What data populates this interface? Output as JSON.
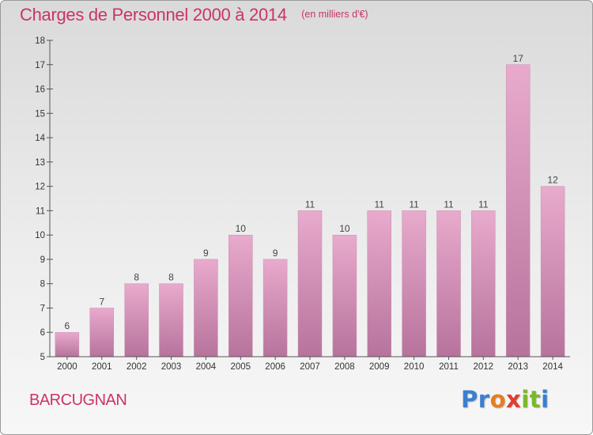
{
  "header": {
    "title": "Charges de Personnel 2000 à 2014",
    "subtitle": "(en milliers d'€)"
  },
  "commune": "BARCUGNAN",
  "logo": {
    "letters": [
      "P",
      "r",
      "o",
      "x",
      "i",
      "t",
      "i"
    ]
  },
  "colors": {
    "title": "#cc3366",
    "bar_top": "#e8aacd",
    "bar_bottom": "#b7739c",
    "axis": "#555555"
  },
  "chart_data": {
    "type": "bar",
    "categories": [
      "2000",
      "2001",
      "2002",
      "2003",
      "2004",
      "2005",
      "2006",
      "2007",
      "2008",
      "2009",
      "2010",
      "2011",
      "2012",
      "2013",
      "2014"
    ],
    "values": [
      6,
      7,
      8,
      8,
      9,
      10,
      9,
      11,
      10,
      11,
      11,
      11,
      11,
      17,
      12
    ],
    "ylim": [
      5,
      18
    ],
    "yticks": [
      5,
      6,
      7,
      8,
      9,
      10,
      11,
      12,
      13,
      14,
      15,
      16,
      17,
      18
    ],
    "grid": false,
    "data_labels": true
  }
}
